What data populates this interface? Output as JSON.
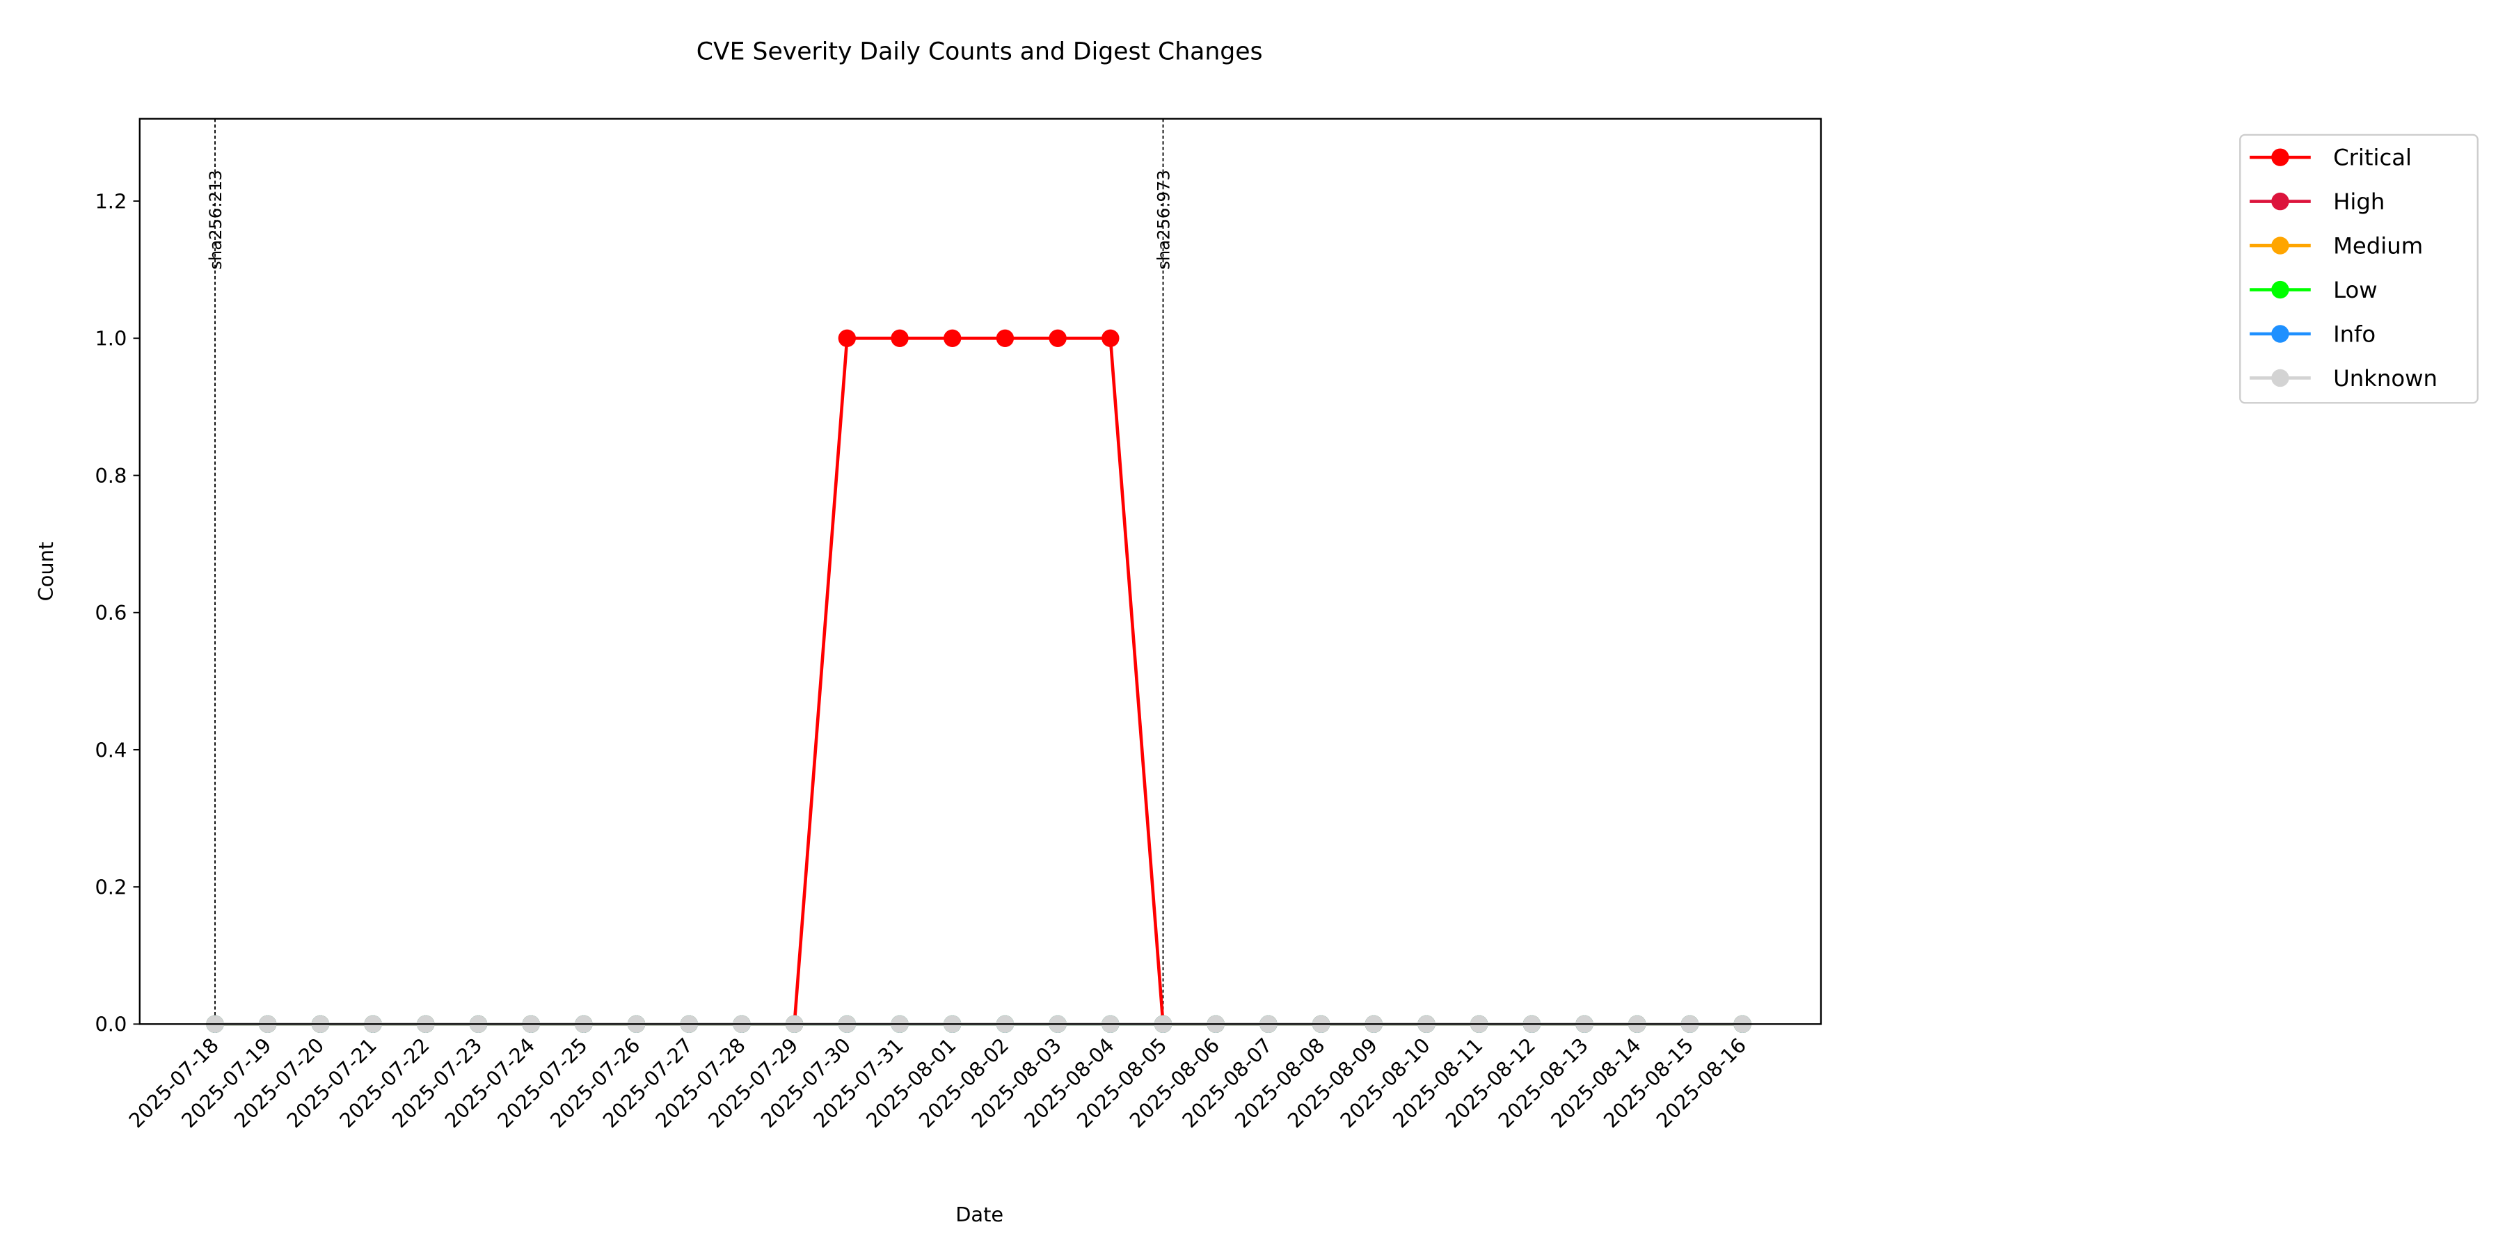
{
  "chart_data": {
    "type": "line",
    "title": "CVE Severity Daily Counts and Digest Changes",
    "x_label": "Date",
    "y_label": "Count",
    "categories": [
      "2025-07-18",
      "2025-07-19",
      "2025-07-20",
      "2025-07-21",
      "2025-07-22",
      "2025-07-23",
      "2025-07-24",
      "2025-07-25",
      "2025-07-26",
      "2025-07-27",
      "2025-07-28",
      "2025-07-29",
      "2025-07-30",
      "2025-07-31",
      "2025-08-01",
      "2025-08-02",
      "2025-08-03",
      "2025-08-04",
      "2025-08-05",
      "2025-08-06",
      "2025-08-07",
      "2025-08-08",
      "2025-08-09",
      "2025-08-10",
      "2025-08-11",
      "2025-08-12",
      "2025-08-13",
      "2025-08-14",
      "2025-08-15",
      "2025-08-16"
    ],
    "series": [
      {
        "name": "Critical",
        "color": "#ff0000",
        "values": [
          0,
          0,
          0,
          0,
          0,
          0,
          0,
          0,
          0,
          0,
          0,
          0,
          1,
          1,
          1,
          1,
          1,
          1,
          0,
          0,
          0,
          0,
          0,
          0,
          0,
          0,
          0,
          0,
          0,
          0
        ]
      },
      {
        "name": "High",
        "color": "#dc143c",
        "values": [
          0,
          0,
          0,
          0,
          0,
          0,
          0,
          0,
          0,
          0,
          0,
          0,
          0,
          0,
          0,
          0,
          0,
          0,
          0,
          0,
          0,
          0,
          0,
          0,
          0,
          0,
          0,
          0,
          0,
          0
        ]
      },
      {
        "name": "Medium",
        "color": "#ffa500",
        "values": [
          0,
          0,
          0,
          0,
          0,
          0,
          0,
          0,
          0,
          0,
          0,
          0,
          0,
          0,
          0,
          0,
          0,
          0,
          0,
          0,
          0,
          0,
          0,
          0,
          0,
          0,
          0,
          0,
          0,
          0
        ]
      },
      {
        "name": "Low",
        "color": "#00ff00",
        "values": [
          0,
          0,
          0,
          0,
          0,
          0,
          0,
          0,
          0,
          0,
          0,
          0,
          0,
          0,
          0,
          0,
          0,
          0,
          0,
          0,
          0,
          0,
          0,
          0,
          0,
          0,
          0,
          0,
          0,
          0
        ]
      },
      {
        "name": "Info",
        "color": "#1e90ff",
        "values": [
          0,
          0,
          0,
          0,
          0,
          0,
          0,
          0,
          0,
          0,
          0,
          0,
          0,
          0,
          0,
          0,
          0,
          0,
          0,
          0,
          0,
          0,
          0,
          0,
          0,
          0,
          0,
          0,
          0,
          0
        ]
      },
      {
        "name": "Unknown",
        "color": "#d3d3d3",
        "values": [
          0,
          0,
          0,
          0,
          0,
          0,
          0,
          0,
          0,
          0,
          0,
          0,
          0,
          0,
          0,
          0,
          0,
          0,
          0,
          0,
          0,
          0,
          0,
          0,
          0,
          0,
          0,
          0,
          0,
          0
        ]
      }
    ],
    "annotations": [
      {
        "x": "2025-07-18",
        "label": "sha256:213"
      },
      {
        "x": "2025-08-05",
        "label": "sha256:973"
      }
    ],
    "ylim": [
      0,
      1.32
    ],
    "yticks": [
      {
        "value": 0,
        "label": "0.0"
      },
      0.2,
      0.4,
      0.6,
      0.8,
      {
        "value": 1,
        "label": "1.0"
      },
      1.2
    ],
    "legend": "outside upper right",
    "grid": false
  }
}
